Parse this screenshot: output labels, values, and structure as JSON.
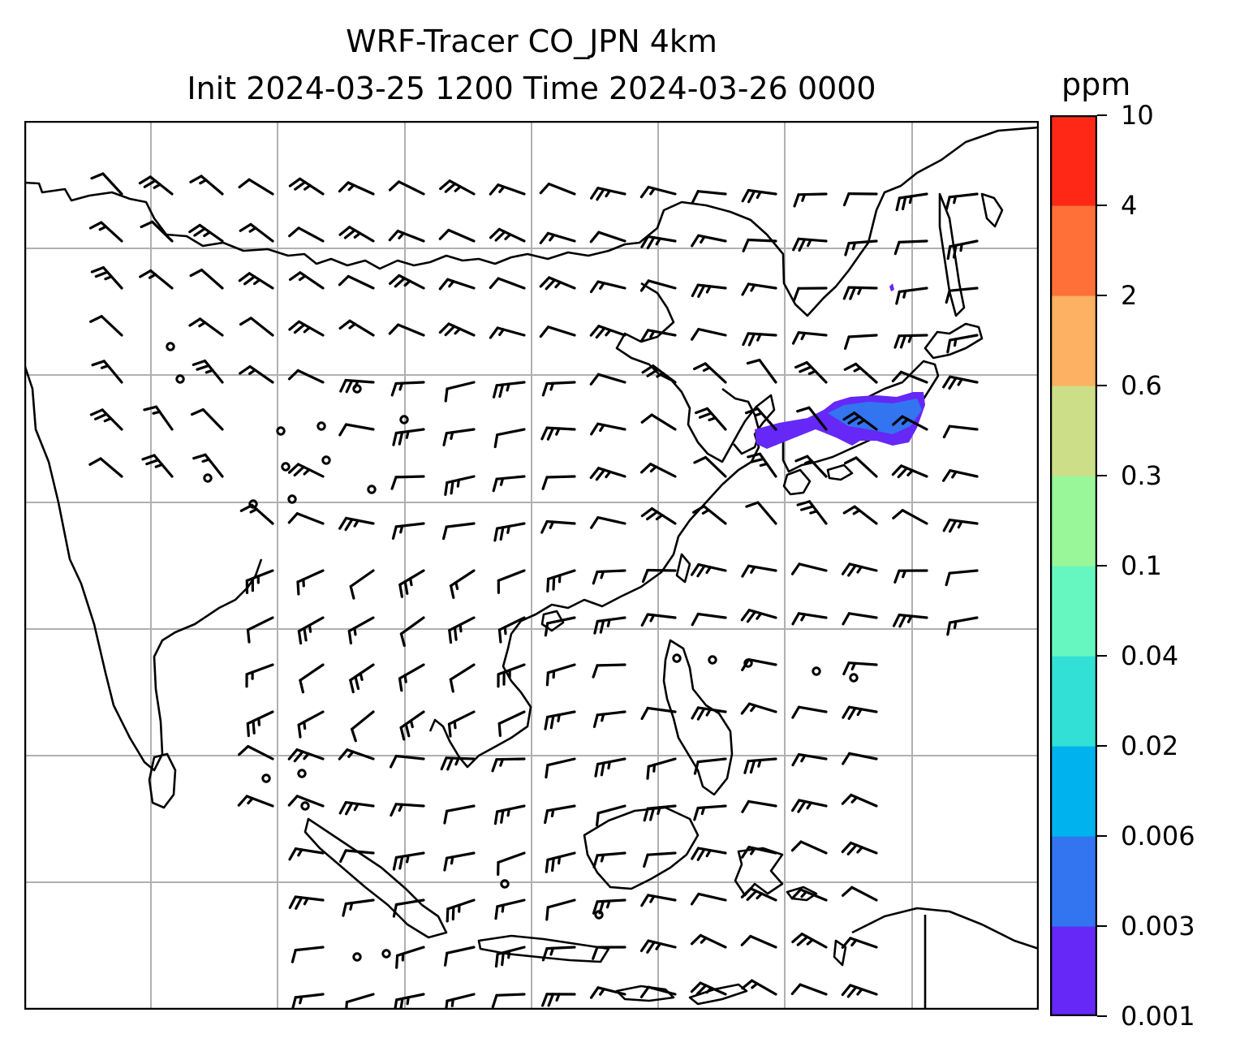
{
  "title": {
    "line1": "WRF-Tracer CO_JPN 4km",
    "line2": "Init 2024-03-25 1200 Time 2024-03-26 0000"
  },
  "colorbar": {
    "unit": "ppm",
    "ticks": [
      "0.001",
      "0.003",
      "0.006",
      "0.02",
      "0.04",
      "0.1",
      "0.3",
      "0.6",
      "2",
      "4",
      "10"
    ],
    "colors": [
      "#6528f7",
      "#3374f0",
      "#00b2ed",
      "#33e0d5",
      "#66f7c0",
      "#99f799",
      "#ccdf88",
      "#fdb162",
      "#ff7038",
      "#ff2816"
    ]
  },
  "map": {
    "region": "East and Southeast Asia",
    "projection_grid": "on",
    "tracer_plume_region": "central Japan (Honshu)"
  }
}
